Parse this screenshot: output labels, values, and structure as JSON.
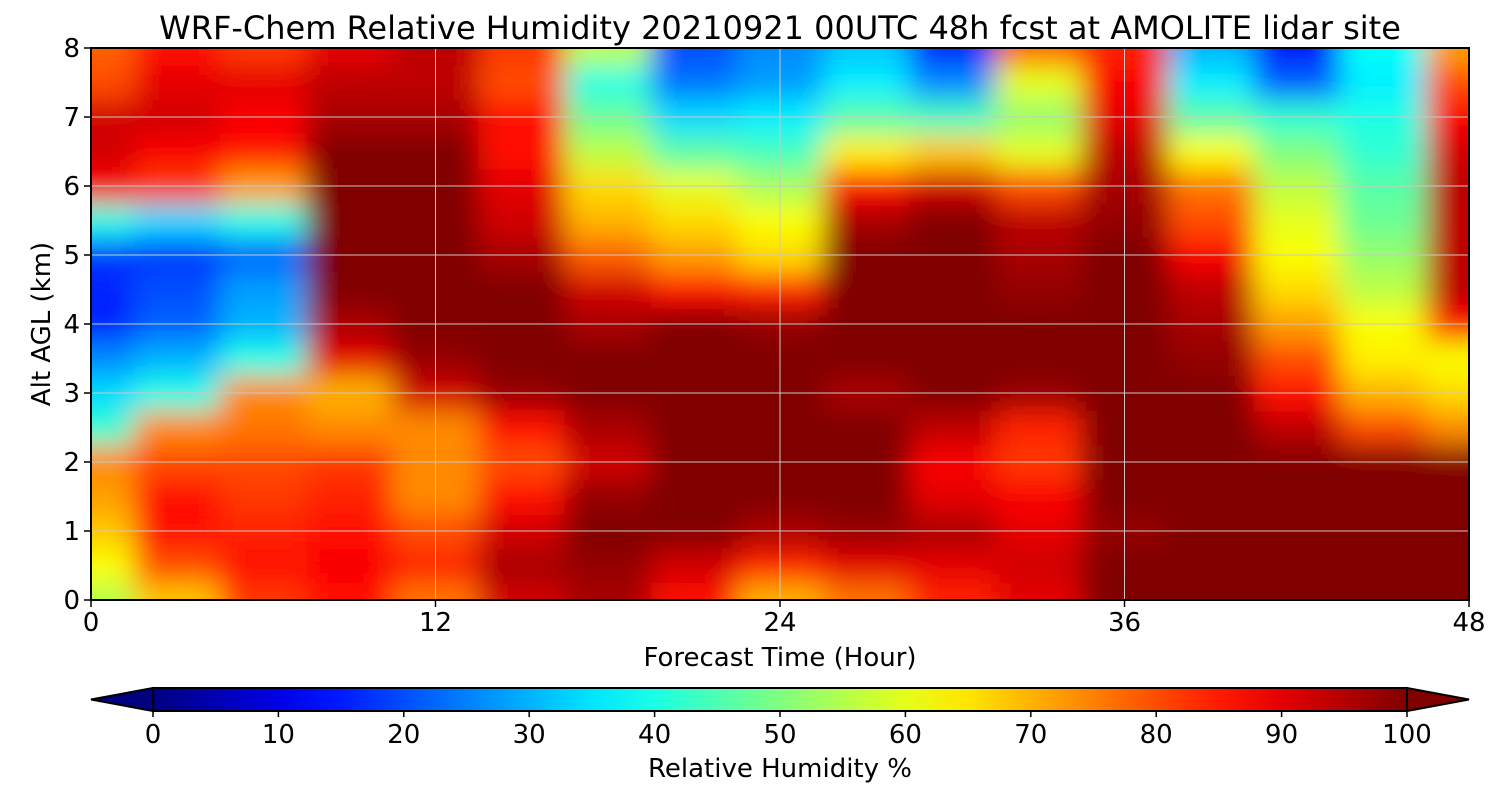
{
  "chart_data": {
    "type": "heatmap",
    "title": "WRF-Chem Relative Humidity 20210921 00UTC 48h fcst at AMOLITE lidar site",
    "xlabel": "Forecast Time (Hour)",
    "ylabel": "Alt AGL (km)",
    "xlim": [
      0,
      48
    ],
    "ylim": [
      0,
      8
    ],
    "xticks": [
      "0",
      "12",
      "24",
      "36",
      "48"
    ],
    "yticks": [
      "0",
      "1",
      "2",
      "3",
      "4",
      "5",
      "6",
      "7",
      "8"
    ],
    "grid": true,
    "colorbar": {
      "label": "Relative Humidity %",
      "range": [
        0,
        100
      ],
      "extend": "both",
      "colormap": "jet",
      "ticks": [
        "0",
        "10",
        "20",
        "30",
        "40",
        "50",
        "60",
        "70",
        "80",
        "90",
        "100"
      ]
    },
    "x": [
      0,
      3,
      6,
      9,
      12,
      15,
      18,
      21,
      24,
      27,
      30,
      33,
      36,
      39,
      42,
      45,
      48
    ],
    "y": [
      0,
      0.5,
      1,
      1.5,
      2,
      2.5,
      3,
      3.5,
      4,
      4.5,
      5,
      5.5,
      6,
      6.5,
      7,
      7.5,
      8
    ],
    "values": [
      [
        55,
        68,
        82,
        86,
        76,
        92,
        96,
        86,
        70,
        76,
        84,
        90,
        100,
        100,
        100,
        100,
        100
      ],
      [
        62,
        80,
        86,
        88,
        84,
        96,
        98,
        92,
        84,
        90,
        90,
        92,
        100,
        100,
        100,
        100,
        100
      ],
      [
        68,
        86,
        84,
        86,
        80,
        92,
        100,
        100,
        96,
        98,
        96,
        90,
        98,
        100,
        100,
        100,
        100
      ],
      [
        72,
        86,
        82,
        84,
        74,
        86,
        98,
        100,
        100,
        100,
        90,
        88,
        100,
        100,
        100,
        100,
        100
      ],
      [
        74,
        80,
        80,
        82,
        74,
        80,
        92,
        100,
        100,
        100,
        88,
        82,
        100,
        100,
        100,
        100,
        100
      ],
      [
        42,
        74,
        76,
        74,
        74,
        86,
        96,
        100,
        100,
        100,
        94,
        84,
        100,
        100,
        94,
        80,
        74
      ],
      [
        34,
        40,
        74,
        70,
        92,
        98,
        100,
        100,
        100,
        96,
        100,
        98,
        100,
        100,
        86,
        70,
        66
      ],
      [
        26,
        30,
        40,
        90,
        98,
        100,
        100,
        100,
        100,
        100,
        100,
        100,
        100,
        98,
        80,
        64,
        62
      ],
      [
        16,
        22,
        30,
        96,
        100,
        100,
        96,
        100,
        98,
        100,
        100,
        100,
        100,
        96,
        72,
        62,
        86
      ],
      [
        16,
        20,
        28,
        100,
        100,
        100,
        92,
        86,
        84,
        100,
        100,
        98,
        100,
        94,
        66,
        56,
        94
      ],
      [
        18,
        18,
        22,
        100,
        100,
        96,
        78,
        72,
        66,
        100,
        100,
        96,
        100,
        88,
        62,
        52,
        94
      ],
      [
        40,
        34,
        40,
        100,
        100,
        92,
        70,
        66,
        62,
        96,
        100,
        94,
        98,
        80,
        60,
        48,
        94
      ],
      [
        88,
        82,
        72,
        100,
        100,
        90,
        66,
        60,
        54,
        86,
        92,
        80,
        96,
        76,
        56,
        46,
        94
      ],
      [
        92,
        88,
        86,
        100,
        100,
        86,
        56,
        46,
        44,
        64,
        68,
        60,
        94,
        62,
        50,
        42,
        92
      ],
      [
        92,
        92,
        88,
        96,
        96,
        86,
        48,
        34,
        36,
        46,
        44,
        52,
        90,
        46,
        42,
        40,
        88
      ],
      [
        80,
        90,
        90,
        94,
        94,
        80,
        40,
        24,
        28,
        36,
        26,
        60,
        88,
        36,
        22,
        36,
        80
      ],
      [
        78,
        86,
        82,
        90,
        94,
        82,
        56,
        20,
        26,
        32,
        16,
        78,
        84,
        30,
        14,
        38,
        72
      ]
    ]
  }
}
